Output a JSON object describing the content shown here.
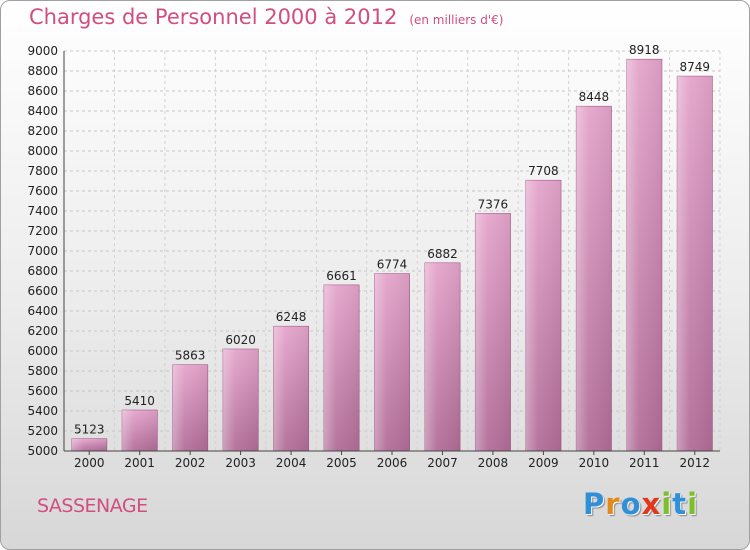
{
  "chart_data": {
    "type": "bar",
    "title": "Charges de Personnel 2000 à 2012",
    "subtitle": "(en milliers d'€)",
    "categories": [
      "2000",
      "2001",
      "2002",
      "2003",
      "2004",
      "2005",
      "2006",
      "2007",
      "2008",
      "2009",
      "2010",
      "2011",
      "2012"
    ],
    "values": [
      5123,
      5410,
      5863,
      6020,
      6248,
      6661,
      6774,
      6882,
      7376,
      7708,
      8448,
      8918,
      8749
    ],
    "ylim": [
      5000,
      9000
    ],
    "yticks": [
      5000,
      5200,
      5400,
      5600,
      5800,
      6000,
      6200,
      6400,
      6600,
      6800,
      7000,
      7200,
      7400,
      7600,
      7800,
      8000,
      8200,
      8400,
      8600,
      8800,
      9000
    ],
    "xlabel": "",
    "ylabel": "",
    "grid": true,
    "bar_color": "#c66f9b"
  },
  "footer": {
    "city": "SASSENAGE",
    "logo_letters": [
      {
        "ch": "P",
        "color": "#2f8fd8"
      },
      {
        "ch": "r",
        "color": "#e08a1e"
      },
      {
        "ch": "o",
        "color": "#2f8fd8"
      },
      {
        "ch": "x",
        "color": "#e2371d"
      },
      {
        "ch": "i",
        "color": "#7bbf2a"
      },
      {
        "ch": "t",
        "color": "#2f8fd8"
      },
      {
        "ch": "i",
        "color": "#7bbf2a"
      }
    ]
  }
}
